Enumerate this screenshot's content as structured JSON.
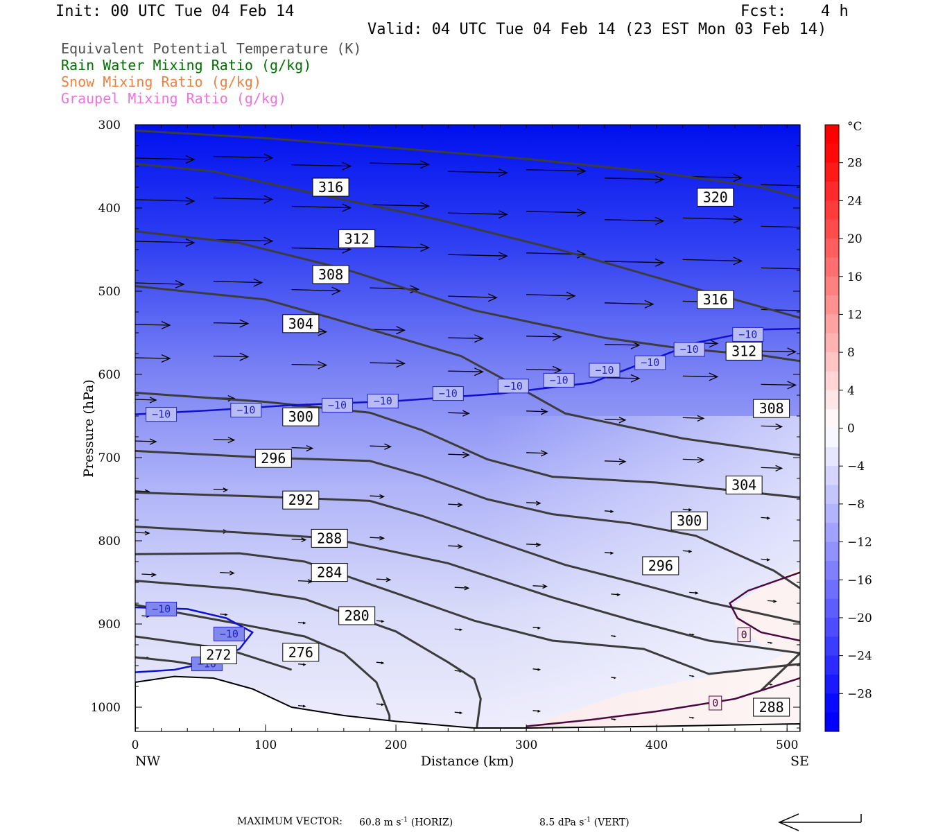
{
  "header": {
    "init": "Init: 00 UTC Tue 04 Feb 14",
    "fcst_label": "Fcst:",
    "fcst_value": "4 h",
    "valid": "Valid: 04 UTC Tue 04 Feb 14 (23 EST Mon 03 Feb 14)"
  },
  "legend": [
    {
      "text": "Equivalent Potential Temperature (K)",
      "color": "#505050"
    },
    {
      "text": "Rain Water Mixing Ratio (g/kg)",
      "color": "#007000"
    },
    {
      "text": "Snow Mixing Ratio (g/kg)",
      "color": "#f08040"
    },
    {
      "text": "Graupel Mixing Ratio (g/kg)",
      "color": "#f070e0"
    }
  ],
  "footer": {
    "max_vector_label": "MAXIMUM VECTOR:",
    "horiz_value": "60.8 m s",
    "horiz_sup": "-1",
    "horiz_tag": "(HORIZ)",
    "vert_value": "8.5 dPa s",
    "vert_sup": "-1",
    "vert_tag": "(VERT)"
  },
  "colorbar": {
    "unit": "°C",
    "labels": [
      "28",
      "24",
      "20",
      "16",
      "12",
      "8",
      "4",
      "0",
      "−4",
      "−8",
      "−12",
      "−16",
      "−20",
      "−24",
      "−28"
    ],
    "ticks": [
      28,
      24,
      20,
      16,
      12,
      8,
      4,
      0,
      -4,
      -8,
      -12,
      -16,
      -20,
      -24,
      -28
    ],
    "range": [
      -32,
      32
    ],
    "cold_color": "#0000ff",
    "warm_color": "#ff0000"
  },
  "chart_data": {
    "type": "contour",
    "xlabel": "Distance (km)",
    "ylabel": "Pressure (hPa)",
    "xlim": [
      0,
      510
    ],
    "ylim": [
      1030,
      300
    ],
    "x_ticks": [
      "0",
      "100",
      "200",
      "300",
      "400",
      "500"
    ],
    "y_ticks": [
      "300",
      "400",
      "500",
      "600",
      "700",
      "800",
      "900",
      "1000"
    ],
    "x_tick_values": [
      0,
      100,
      200,
      300,
      400,
      500
    ],
    "y_tick_values": [
      300,
      400,
      500,
      600,
      700,
      800,
      900,
      1000
    ],
    "endpoints": {
      "left": "NW",
      "right": "SE"
    },
    "theta_e_contours": [
      {
        "label": "320",
        "points": [
          [
            0,
            307
          ],
          [
            100,
            316
          ],
          [
            200,
            328
          ],
          [
            300,
            341
          ],
          [
            400,
            357
          ],
          [
            480,
            375
          ],
          [
            510,
            388
          ]
        ]
      },
      {
        "label": "316",
        "points": [
          [
            0,
            347
          ],
          [
            60,
            356
          ],
          [
            130,
            380
          ],
          [
            230,
            413
          ],
          [
            330,
            452
          ],
          [
            430,
            497
          ],
          [
            510,
            532
          ]
        ]
      },
      {
        "label": "312",
        "points": [
          [
            0,
            428
          ],
          [
            80,
            442
          ],
          [
            160,
            473
          ],
          [
            260,
            523
          ],
          [
            360,
            556
          ],
          [
            420,
            569
          ],
          [
            480,
            577
          ],
          [
            510,
            584
          ]
        ]
      },
      {
        "label": "308",
        "points": [
          [
            0,
            494
          ],
          [
            100,
            510
          ],
          [
            150,
            532
          ],
          [
            250,
            578
          ],
          [
            290,
            612
          ],
          [
            330,
            647
          ],
          [
            420,
            677
          ],
          [
            510,
            697
          ]
        ]
      },
      {
        "label": "304",
        "points": [
          [
            0,
            622
          ],
          [
            100,
            633
          ],
          [
            180,
            646
          ],
          [
            220,
            667
          ],
          [
            270,
            702
          ],
          [
            320,
            723
          ],
          [
            400,
            730
          ],
          [
            510,
            748
          ]
        ]
      },
      {
        "label": "300",
        "points": [
          [
            0,
            692
          ],
          [
            100,
            700
          ],
          [
            180,
            704
          ],
          [
            220,
            722
          ],
          [
            270,
            750
          ],
          [
            320,
            768
          ],
          [
            380,
            779
          ],
          [
            430,
            794
          ],
          [
            490,
            836
          ],
          [
            510,
            857
          ]
        ]
      },
      {
        "label": "296",
        "points": [
          [
            0,
            742
          ],
          [
            100,
            747
          ],
          [
            180,
            752
          ],
          [
            220,
            770
          ],
          [
            270,
            797
          ],
          [
            330,
            829
          ],
          [
            380,
            849
          ],
          [
            440,
            874
          ],
          [
            510,
            898
          ]
        ]
      },
      {
        "label": "292",
        "points": [
          [
            0,
            783
          ],
          [
            80,
            790
          ],
          [
            150,
            797
          ],
          [
            240,
            827
          ],
          [
            320,
            868
          ],
          [
            380,
            895
          ],
          [
            440,
            920
          ],
          [
            510,
            935
          ]
        ]
      },
      {
        "label": "288",
        "points": [
          [
            0,
            816
          ],
          [
            80,
            815
          ],
          [
            130,
            825
          ],
          [
            200,
            863
          ],
          [
            260,
            896
          ],
          [
            320,
            920
          ],
          [
            390,
            930
          ],
          [
            440,
            960
          ],
          [
            510,
            948
          ]
        ]
      },
      {
        "label": "284",
        "points": [
          [
            0,
            848
          ],
          [
            80,
            858
          ],
          [
            130,
            870
          ],
          [
            200,
            909
          ],
          [
            240,
            946
          ],
          [
            260,
            966
          ],
          [
            265,
            990
          ],
          [
            262,
            1025
          ]
        ]
      },
      {
        "label": "280",
        "points": [
          [
            0,
            877
          ],
          [
            80,
            900
          ],
          [
            130,
            915
          ],
          [
            160,
            935
          ],
          [
            185,
            970
          ],
          [
            195,
            1010
          ],
          [
            195,
            1025
          ]
        ]
      },
      {
        "label": "276",
        "points": [
          [
            0,
            915
          ],
          [
            70,
            930
          ],
          [
            100,
            945
          ],
          [
            120,
            955
          ]
        ]
      },
      {
        "label": "272",
        "points": [
          [
            0,
            940
          ],
          [
            30,
            945
          ],
          [
            50,
            950
          ]
        ]
      },
      {
        "label": "288",
        "points": [
          [
            480,
            980
          ],
          [
            500,
            950
          ],
          [
            510,
            935
          ]
        ]
      }
    ],
    "contour_labels": [
      {
        "text": "316",
        "x": 150,
        "p": 375
      },
      {
        "text": "320",
        "x": 445,
        "p": 387
      },
      {
        "text": "312",
        "x": 170,
        "p": 437
      },
      {
        "text": "308",
        "x": 150,
        "p": 480
      },
      {
        "text": "316",
        "x": 445,
        "p": 510
      },
      {
        "text": "304",
        "x": 127,
        "p": 539
      },
      {
        "text": "312",
        "x": 467,
        "p": 572
      },
      {
        "text": "300",
        "x": 127,
        "p": 651
      },
      {
        "text": "308",
        "x": 488,
        "p": 641
      },
      {
        "text": "296",
        "x": 106,
        "p": 701
      },
      {
        "text": "304",
        "x": 467,
        "p": 733
      },
      {
        "text": "292",
        "x": 127,
        "p": 751
      },
      {
        "text": "300",
        "x": 425,
        "p": 776
      },
      {
        "text": "288",
        "x": 149,
        "p": 797
      },
      {
        "text": "296",
        "x": 403,
        "p": 830
      },
      {
        "text": "284",
        "x": 149,
        "p": 838
      },
      {
        "text": "280",
        "x": 170,
        "p": 890
      },
      {
        "text": "276",
        "x": 127,
        "p": 934
      },
      {
        "text": "272",
        "x": 64,
        "p": 937
      },
      {
        "text": "288",
        "x": 488,
        "p": 1000
      }
    ],
    "isotherm_minus10": {
      "label": "−10",
      "points": [
        [
          0,
          648
        ],
        [
          60,
          643
        ],
        [
          120,
          637
        ],
        [
          200,
          632
        ],
        [
          280,
          623
        ],
        [
          350,
          610
        ],
        [
          390,
          586
        ],
        [
          430,
          562
        ],
        [
          480,
          546
        ],
        [
          510,
          545
        ]
      ]
    },
    "isotherm_minus10_low": {
      "label": "−10",
      "points": [
        [
          0,
          880
        ],
        [
          40,
          882
        ],
        [
          70,
          893
        ],
        [
          90,
          910
        ],
        [
          80,
          930
        ],
        [
          60,
          945
        ],
        [
          30,
          955
        ],
        [
          0,
          958
        ]
      ]
    },
    "isotherm_0": {
      "label": "0",
      "points": [
        [
          300,
          1023
        ],
        [
          350,
          1015
        ],
        [
          400,
          1005
        ],
        [
          460,
          990
        ],
        [
          510,
          965
        ]
      ]
    },
    "isotherm_0_upper": {
      "label": "0",
      "points": [
        [
          510,
          838
        ],
        [
          470,
          860
        ],
        [
          456,
          875
        ],
        [
          462,
          893
        ],
        [
          480,
          910
        ],
        [
          510,
          920
        ]
      ]
    },
    "terrain_surface": [
      [
        0,
        970
      ],
      [
        30,
        963
      ],
      [
        60,
        965
      ],
      [
        90,
        978
      ],
      [
        120,
        1000
      ],
      [
        160,
        1010
      ],
      [
        200,
        1017
      ],
      [
        260,
        1025
      ],
      [
        300,
        1025
      ],
      [
        400,
        1023
      ],
      [
        510,
        1020
      ]
    ],
    "wind_vectors_note": "horizontal wind arrows, strongest aloft"
  }
}
